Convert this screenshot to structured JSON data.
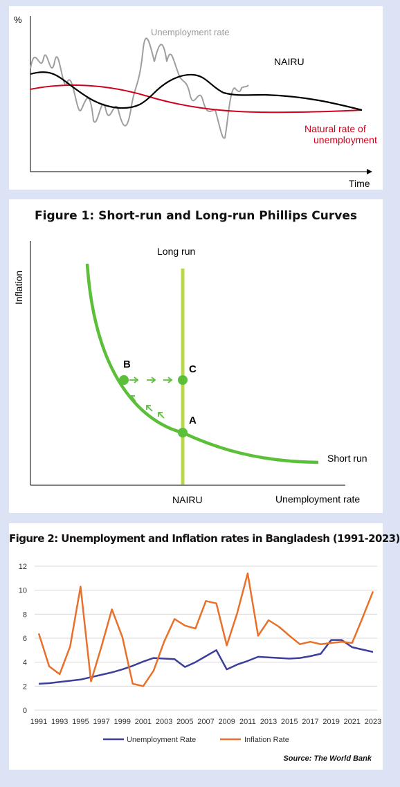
{
  "chart_data": [
    {
      "type": "line",
      "title": "",
      "ylabel": "%",
      "xlabel": "Time",
      "series": [
        {
          "name": "Unemployment rate",
          "color": "#9e9e9e"
        },
        {
          "name": "NAIRU",
          "color": "#000000"
        },
        {
          "name": "Natural rate of unemployment",
          "color": "#d0021b"
        }
      ]
    },
    {
      "type": "line",
      "title": "Figure 1: Short-run and Long-run Phillips Curves",
      "xlabel": "Unemployment rate",
      "ylabel": "Inflation",
      "curve_labels": {
        "long_run": "Long run",
        "short_run": "Short run",
        "nairu": "NAIRU"
      },
      "points": [
        "A",
        "B",
        "C"
      ],
      "colors": {
        "short_run": "#5bbf3a",
        "long_run": "#b8d84e"
      }
    },
    {
      "type": "line",
      "title": "Figure 2: Unemployment and Inflation rates in Bangladesh (1991-2023)",
      "x": [
        "1991",
        "1992",
        "1993",
        "1994",
        "1995",
        "1996",
        "1997",
        "1998",
        "1999",
        "2000",
        "2001",
        "2002",
        "2003",
        "2004",
        "2005",
        "2006",
        "2007",
        "2008",
        "2009",
        "2010",
        "2011",
        "2012",
        "2013",
        "2014",
        "2015",
        "2016",
        "2017",
        "2018",
        "2019",
        "2020",
        "2021",
        "2022",
        "2023"
      ],
      "x_tick_labels": [
        "1991",
        "1993",
        "1995",
        "1997",
        "1999",
        "2001",
        "2003",
        "2005",
        "2007",
        "2009",
        "2011",
        "2013",
        "2015",
        "2017",
        "2019",
        "2021",
        "2023"
      ],
      "ylim": [
        0,
        12
      ],
      "y_ticks": [
        "0",
        "2",
        "4",
        "6",
        "8",
        "10",
        "12"
      ],
      "legend_position": "bottom",
      "series": [
        {
          "name": "Unemployment Rate",
          "color": "#3c3f99",
          "values": [
            2.2,
            2.25,
            2.35,
            2.45,
            2.55,
            2.75,
            2.95,
            3.15,
            3.4,
            3.7,
            4.05,
            4.35,
            4.3,
            4.25,
            3.6,
            4.0,
            4.5,
            5.0,
            3.4,
            3.8,
            4.1,
            4.45,
            4.4,
            4.35,
            4.3,
            4.35,
            4.5,
            4.7,
            5.85,
            5.85,
            5.25,
            5.05,
            4.85
          ]
        },
        {
          "name": "Inflation Rate",
          "color": "#e8702a",
          "values": [
            6.4,
            3.65,
            3.0,
            5.3,
            10.3,
            2.4,
            5.3,
            8.4,
            6.1,
            2.2,
            2.0,
            3.3,
            5.7,
            7.6,
            7.05,
            6.8,
            9.1,
            8.9,
            5.4,
            8.1,
            11.4,
            6.2,
            7.5,
            6.95,
            6.2,
            5.5,
            5.7,
            5.5,
            5.6,
            5.7,
            5.6,
            7.7,
            9.9
          ]
        }
      ],
      "source": "Source: The World Bank"
    }
  ]
}
